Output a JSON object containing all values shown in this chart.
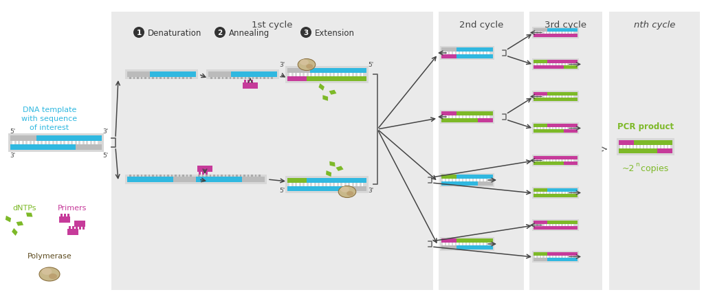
{
  "bg_panel": "#EAEAEA",
  "white": "#FFFFFF",
  "cyan": "#30B8E0",
  "gray_dk": "#999999",
  "gray_lt": "#BBBBBB",
  "magenta": "#C63B9A",
  "green": "#7DB928",
  "tan": "#C8B88A",
  "brown_edge": "#8B7040",
  "text_dark": "#404040",
  "text_cyan": "#30B8E0",
  "text_magenta": "#C63B9A",
  "text_green": "#7DB928",
  "text_brown": "#5C4A1E",
  "cycle1_label": "1st cycle",
  "cycle2_label": "2nd cycle",
  "cycle3_label": "3rd cycle",
  "cyclen_label": "nth cycle",
  "step1_label": "Denaturation",
  "step2_label": "Annealing",
  "step3_label": "Extension",
  "dna_label": "DNA template\nwith sequence\nof interest",
  "dntps_label": "dNTPs",
  "primers_label": "Primers",
  "poly_label": "Polymerase",
  "pcr_label": "PCR product",
  "copies_label": "~2",
  "copies_super": "n",
  "copies_suffix": " copies",
  "prime5": "5'",
  "prime3": "3'"
}
